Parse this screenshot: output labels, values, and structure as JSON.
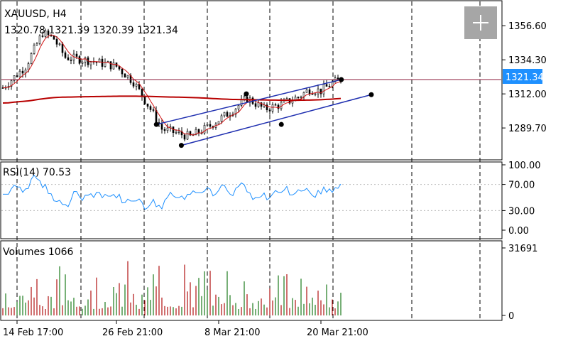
{
  "header": {
    "symbol_timeframe": "XAUUSD, H4",
    "ohlc": "1320.78 1321.39 1320.39 1321.34"
  },
  "rsi_panel": {
    "label": "RSI(14) 70.53"
  },
  "volume_panel": {
    "label": "Volumes 1066"
  },
  "current_price": "1321.34",
  "colors": {
    "bull": "#1a7a1a",
    "bear": "#b01010",
    "ma_fast": "#d01010",
    "ma_slow": "#b80000",
    "hline": "#8b1a3a",
    "channel": "#1f2fb0",
    "rsi": "#1e90ff",
    "price_tag": "#1e90ff"
  },
  "chart_data": [
    {
      "type": "candlestick",
      "title": "XAUUSD, H4",
      "y_ticks": [
        "1356.60",
        "1334.30",
        "1312.00",
        "1289.70"
      ],
      "y_tick_values": [
        1356.6,
        1334.3,
        1312.0,
        1289.7
      ],
      "ylim": [
        1269.3,
        1372.5
      ],
      "x_ticks": [
        "14 Feb 17:00",
        "26 Feb 21:00",
        "8 Mar 21:00",
        "20 Mar 21:00"
      ],
      "horizontal_line": 1321.34,
      "anchor_points": [
        {
          "t": 0.31,
          "price": 1292.0
        },
        {
          "t": 0.49,
          "price": 1312.0
        },
        {
          "t": 0.68,
          "price": 1321.34
        },
        {
          "t": 0.36,
          "price": 1278.3
        },
        {
          "t": 0.56,
          "price": 1292.0
        },
        {
          "t": 0.74,
          "price": 1311.5
        }
      ]
    },
    {
      "type": "line",
      "name": "RSI(14) 70.53",
      "y_ticks": [
        "100.00",
        "70.00",
        "30.00",
        "0.00"
      ],
      "y_tick_values": [
        100,
        70,
        30,
        0
      ],
      "ylim": [
        0,
        100
      ],
      "last_value": 70.53
    },
    {
      "type": "bar",
      "name": "Volumes 1066",
      "y_ticks": [
        "31691",
        "0"
      ],
      "y_tick_values": [
        31691,
        0
      ],
      "ylim": [
        0,
        31691
      ],
      "last_value": 1066
    }
  ]
}
